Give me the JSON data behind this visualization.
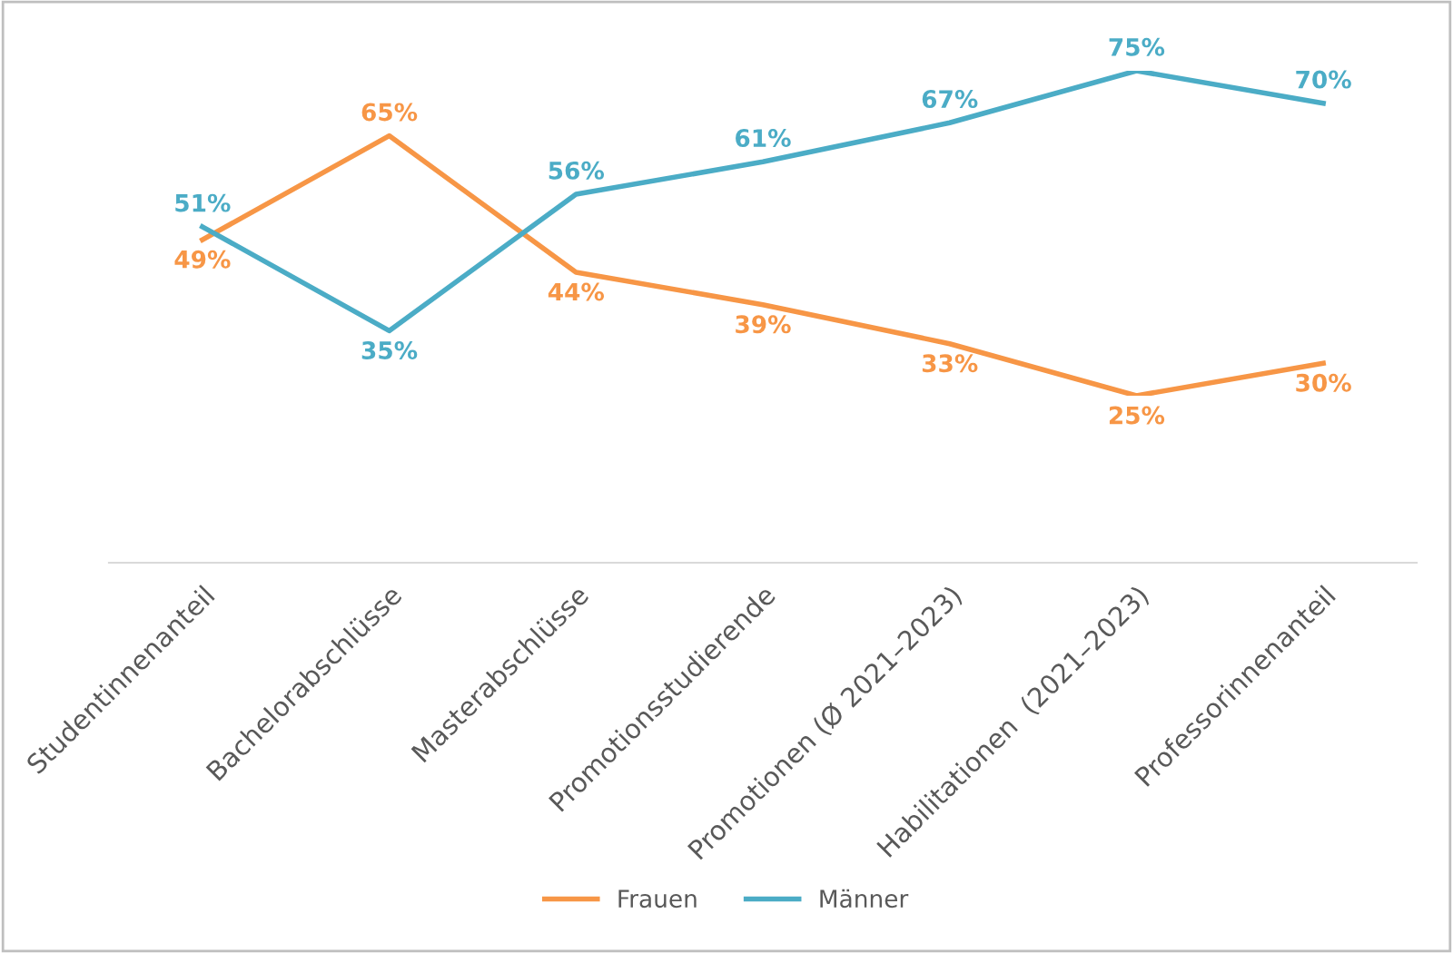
{
  "chart_data": {
    "type": "line",
    "categories": [
      "Studentinnenanteil",
      "Bachelorabschlüsse",
      "Masterabschlüsse",
      "Promotionsstudierende",
      "Promotionen (Ø 2021–2023)",
      "Habilitationen  (2021–2023)",
      "Professorinnenanteil"
    ],
    "series": [
      {
        "name": "Frauen",
        "color": "#f79646",
        "values": [
          49,
          65,
          44,
          39,
          33,
          25,
          30
        ],
        "value_labels": [
          "49%",
          "65%",
          "44%",
          "39%",
          "33%",
          "25%",
          "30%"
        ]
      },
      {
        "name": "Männer",
        "color": "#4bacc6",
        "values": [
          51,
          35,
          56,
          61,
          67,
          75,
          70
        ],
        "value_labels": [
          "51%",
          "35%",
          "56%",
          "61%",
          "67%",
          "75%",
          "70%"
        ]
      }
    ],
    "tick_labels": "x",
    "data_labels": true,
    "legend": "bottom",
    "grid": false,
    "marker": "none",
    "line_style": "solid"
  }
}
